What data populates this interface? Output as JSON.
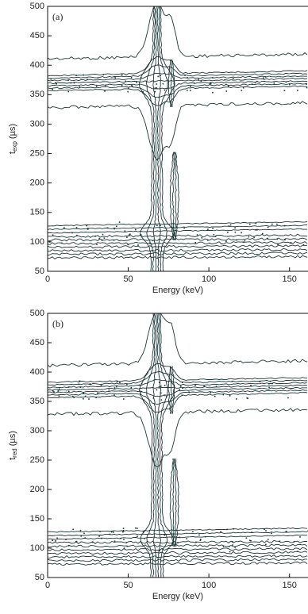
{
  "chart_data": [
    {
      "type": "contour",
      "panel_label": "(a)",
      "xlabel": "Energy (keV)",
      "ylabel": {
        "base": "t",
        "subscript": "exp",
        "unit": "(µs)"
      },
      "xlim": [
        0,
        160
      ],
      "ylim": [
        50,
        500
      ],
      "xticks": [
        0,
        50,
        100,
        150
      ],
      "yticks": [
        50,
        100,
        150,
        200,
        250,
        300,
        350,
        400,
        450,
        500
      ]
    },
    {
      "type": "contour",
      "panel_label": "(b)",
      "xlabel": "Energy (keV)",
      "ylabel": {
        "base": "t",
        "subscript": "red",
        "unit": "(µs)"
      },
      "xlim": [
        0,
        160
      ],
      "ylim": [
        50,
        500
      ],
      "xticks": [
        0,
        50,
        100,
        150
      ],
      "yticks": [
        50,
        100,
        150,
        200,
        250,
        300,
        350,
        400,
        450,
        500
      ]
    }
  ]
}
